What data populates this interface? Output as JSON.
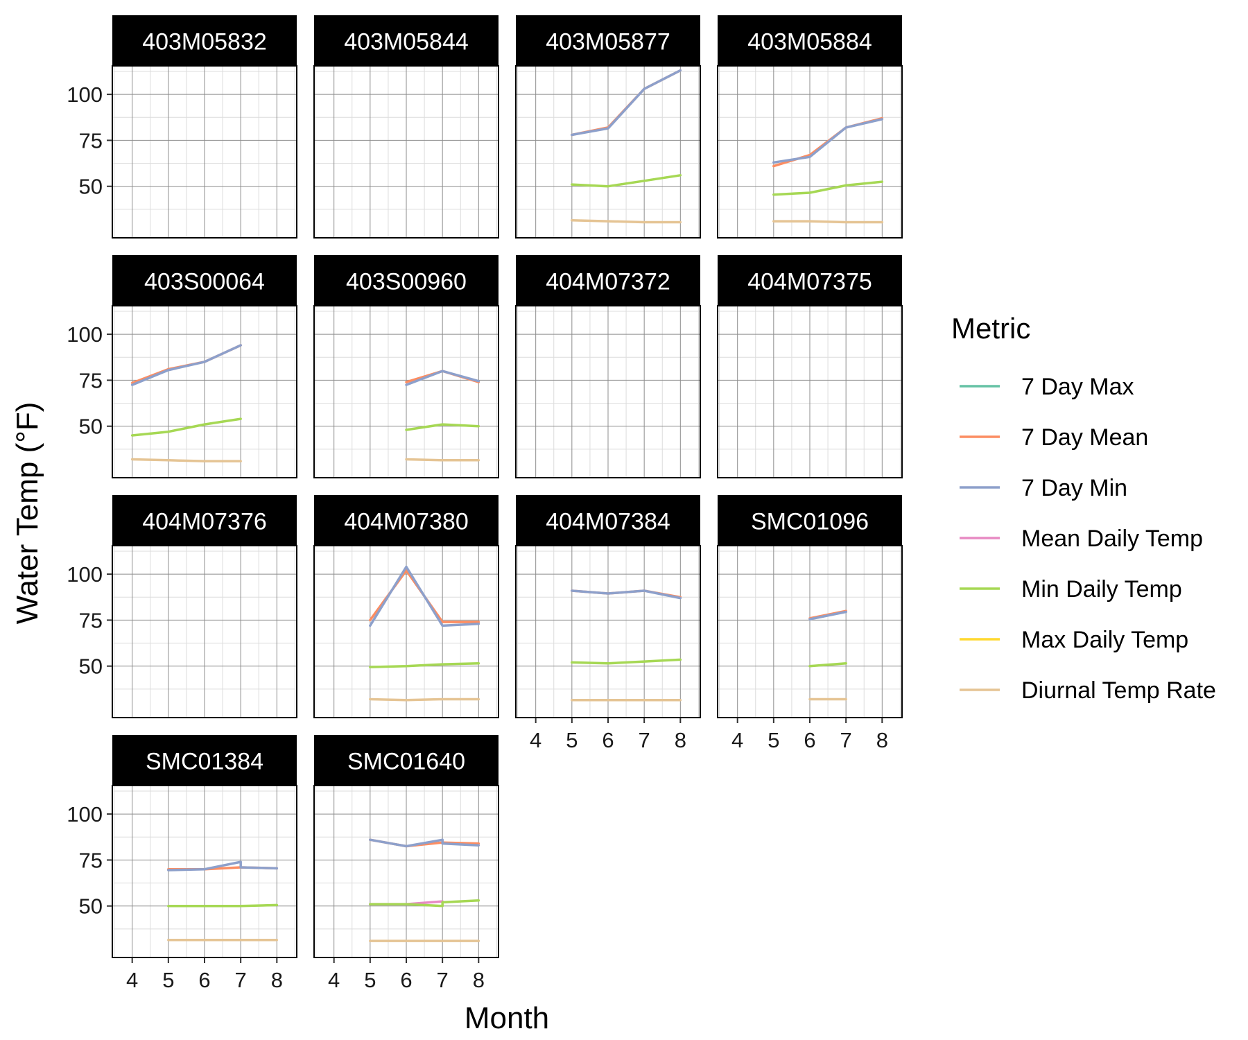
{
  "chart_data": {
    "type": "line",
    "title": "",
    "xlabel": "Month",
    "ylabel": "Water Temp (°F)",
    "xlim": [
      3.45,
      8.55
    ],
    "ylim": [
      22,
      115.5
    ],
    "x_ticks": [
      4,
      5,
      6,
      7,
      8
    ],
    "y_ticks": [
      50,
      75,
      100
    ],
    "y_minor": [
      37.5,
      62.5,
      87.5,
      112.5
    ],
    "grid": true,
    "legend": {
      "title": "Metric",
      "position": "right",
      "entries": [
        {
          "name": "7 Day Max",
          "color": "#66c2a5"
        },
        {
          "name": "7 Day Mean",
          "color": "#fc8d62"
        },
        {
          "name": "7 Day Min",
          "color": "#8da0cb"
        },
        {
          "name": "Mean Daily Temp",
          "color": "#e78ac3"
        },
        {
          "name": "Min Daily Temp",
          "color": "#a6d854"
        },
        {
          "name": "Max Daily Temp",
          "color": "#ffd92f"
        },
        {
          "name": "Diurnal Temp Rate",
          "color": "#e5c494"
        }
      ]
    },
    "panels": [
      {
        "name": "403M05832",
        "series": []
      },
      {
        "name": "403M05844",
        "series": []
      },
      {
        "name": "403M05877",
        "series": [
          {
            "metric": "7 Day Mean",
            "x": [
              5,
              6,
              7,
              8
            ],
            "y": [
              78,
              82,
              103,
              113
            ]
          },
          {
            "metric": "7 Day Min",
            "x": [
              5,
              6,
              7,
              8
            ],
            "y": [
              78,
              81.5,
              103,
              113
            ]
          },
          {
            "metric": "Min Daily Temp",
            "x": [
              5,
              6,
              7,
              8
            ],
            "y": [
              51,
              50,
              53,
              56
            ]
          },
          {
            "metric": "Diurnal Temp Rate",
            "x": [
              5,
              6,
              7,
              8
            ],
            "y": [
              31.5,
              31,
              30.5,
              30.5
            ]
          }
        ]
      },
      {
        "name": "403M05884",
        "series": [
          {
            "metric": "7 Day Mean",
            "x": [
              5,
              6,
              7,
              8
            ],
            "y": [
              61,
              67,
              82,
              87
            ]
          },
          {
            "metric": "7 Day Min",
            "x": [
              5,
              6,
              7,
              8
            ],
            "y": [
              63,
              66,
              82,
              86.5
            ]
          },
          {
            "metric": "Min Daily Temp",
            "x": [
              5,
              6,
              7,
              8
            ],
            "y": [
              45.5,
              46.5,
              50.5,
              52.5
            ]
          },
          {
            "metric": "Diurnal Temp Rate",
            "x": [
              5,
              6,
              7,
              8
            ],
            "y": [
              31,
              31,
              30.5,
              30.5
            ]
          }
        ]
      },
      {
        "name": "403S00064",
        "series": [
          {
            "metric": "7 Day Mean",
            "x": [
              4,
              5,
              6,
              7
            ],
            "y": [
              73.5,
              81,
              85,
              94
            ]
          },
          {
            "metric": "7 Day Min",
            "x": [
              4,
              5,
              6,
              7
            ],
            "y": [
              72.5,
              80.5,
              85,
              94
            ]
          },
          {
            "metric": "Min Daily Temp",
            "x": [
              4,
              5,
              6,
              7
            ],
            "y": [
              45,
              47,
              51,
              54
            ]
          },
          {
            "metric": "Diurnal Temp Rate",
            "x": [
              4,
              5,
              6,
              7
            ],
            "y": [
              32,
              31.5,
              31,
              31
            ]
          }
        ]
      },
      {
        "name": "403S00960",
        "series": [
          {
            "metric": "7 Day Mean",
            "x": [
              6,
              7,
              8
            ],
            "y": [
              74,
              80,
              74
            ]
          },
          {
            "metric": "7 Day Min",
            "x": [
              6,
              7,
              8
            ],
            "y": [
              72.5,
              80,
              74.5
            ]
          },
          {
            "metric": "Min Daily Temp",
            "x": [
              6,
              7,
              8
            ],
            "y": [
              48,
              51,
              50
            ]
          },
          {
            "metric": "Diurnal Temp Rate",
            "x": [
              6,
              7,
              8
            ],
            "y": [
              32,
              31.5,
              31.5
            ]
          }
        ]
      },
      {
        "name": "404M07372",
        "series": []
      },
      {
        "name": "404M07375",
        "series": []
      },
      {
        "name": "404M07376",
        "series": []
      },
      {
        "name": "404M07380",
        "series": [
          {
            "metric": "7 Day Mean",
            "x": [
              5,
              6,
              7,
              8
            ],
            "y": [
              75,
              102,
              74,
              74
            ]
          },
          {
            "metric": "7 Day Min",
            "x": [
              5,
              6,
              7,
              8
            ],
            "y": [
              72,
              104,
              72,
              73
            ]
          },
          {
            "metric": "Min Daily Temp",
            "x": [
              5,
              6,
              7,
              8
            ],
            "y": [
              49.5,
              50,
              51,
              51.5
            ]
          },
          {
            "metric": "Diurnal Temp Rate",
            "x": [
              5,
              6,
              7,
              8
            ],
            "y": [
              32,
              31.5,
              32,
              32
            ]
          }
        ]
      },
      {
        "name": "404M07384",
        "series": [
          {
            "metric": "7 Day Mean",
            "x": [
              5,
              6,
              7,
              8
            ],
            "y": [
              91,
              89.5,
              91,
              87.5
            ]
          },
          {
            "metric": "7 Day Min",
            "x": [
              5,
              6,
              7,
              8
            ],
            "y": [
              91,
              89.5,
              91,
              87
            ]
          },
          {
            "metric": "Min Daily Temp",
            "x": [
              5,
              6,
              7,
              8
            ],
            "y": [
              52,
              51.5,
              52.5,
              53.5
            ]
          },
          {
            "metric": "Diurnal Temp Rate",
            "x": [
              5,
              6,
              7,
              8
            ],
            "y": [
              31.5,
              31.5,
              31.5,
              31.5
            ]
          }
        ]
      },
      {
        "name": "SMC01096",
        "series": [
          {
            "metric": "7 Day Mean",
            "x": [
              6,
              7
            ],
            "y": [
              76,
              80
            ]
          },
          {
            "metric": "7 Day Min",
            "x": [
              6,
              7
            ],
            "y": [
              75.5,
              79.5
            ]
          },
          {
            "metric": "Min Daily Temp",
            "x": [
              6,
              7
            ],
            "y": [
              50,
              51.5
            ]
          },
          {
            "metric": "Diurnal Temp Rate",
            "x": [
              6,
              7
            ],
            "y": [
              32,
              32
            ]
          }
        ]
      },
      {
        "name": "SMC01384",
        "series": [
          {
            "metric": "7 Day Mean",
            "x": [
              5,
              6,
              7,
              8
            ],
            "y": [
              70,
              70,
              71,
              70.5
            ]
          },
          {
            "metric": "7 Day Min",
            "x": [
              5,
              6,
              7,
              7,
              8
            ],
            "y": [
              69.5,
              70,
              74,
              71,
              70.5
            ]
          },
          {
            "metric": "Min Daily Temp",
            "x": [
              5,
              6,
              7,
              8
            ],
            "y": [
              50,
              50,
              50,
              50.5
            ]
          },
          {
            "metric": "Diurnal Temp Rate",
            "x": [
              5,
              6,
              7,
              8
            ],
            "y": [
              31.5,
              31.5,
              31.5,
              31.5
            ]
          }
        ]
      },
      {
        "name": "SMC01640",
        "series": [
          {
            "metric": "7 Day Mean",
            "x": [
              5,
              6,
              7,
              8
            ],
            "y": [
              86,
              82.5,
              84.5,
              84
            ]
          },
          {
            "metric": "7 Day Min",
            "x": [
              5,
              6,
              7,
              7,
              8
            ],
            "y": [
              86,
              82.5,
              86,
              84,
              83
            ]
          },
          {
            "metric": "Mean Daily Temp",
            "x": [
              5,
              6,
              7
            ],
            "y": [
              51,
              51,
              52.5
            ]
          },
          {
            "metric": "Min Daily Temp",
            "x": [
              5,
              6,
              7,
              7,
              8
            ],
            "y": [
              51,
              51,
              50,
              52,
              53
            ]
          },
          {
            "metric": "Diurnal Temp Rate",
            "x": [
              5,
              6,
              7,
              8
            ],
            "y": [
              31,
              31,
              31,
              31
            ]
          }
        ]
      }
    ]
  }
}
